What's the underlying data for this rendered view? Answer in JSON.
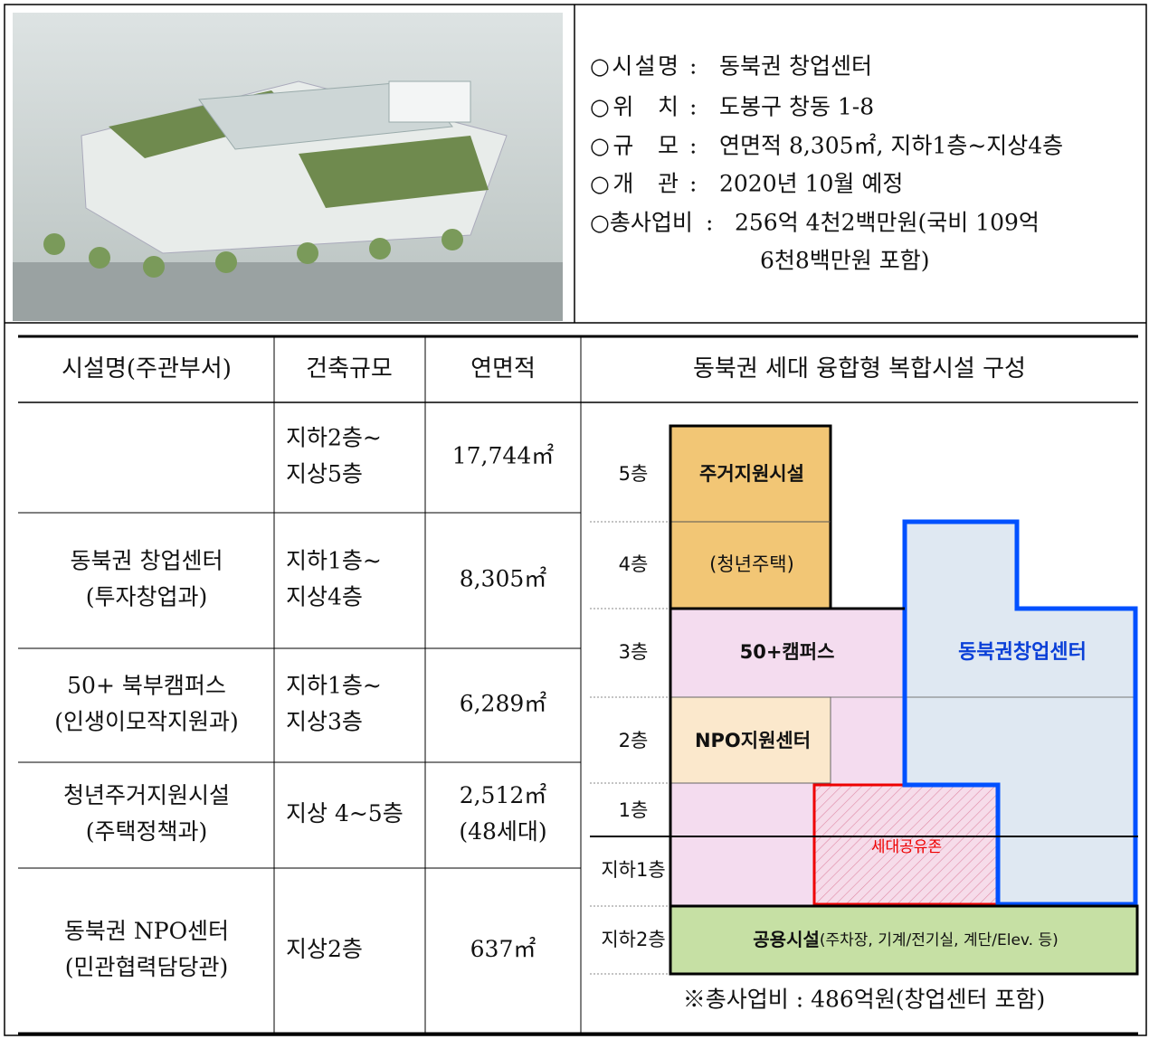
{
  "info": {
    "separator": ":",
    "items": [
      {
        "label": "○시설명",
        "value": [
          "동북권 창업센터"
        ]
      },
      {
        "label": "○위  치",
        "value": [
          "도봉구 창동 1-8"
        ]
      },
      {
        "label": "○규  모",
        "value": [
          "연면적 8,305㎡, 지하1층~지상4층"
        ]
      },
      {
        "label": "○개  관",
        "value": [
          "2020년 10월 예정"
        ]
      },
      {
        "label": "○총사업비",
        "value": [
          "256억 4천2백만원(국비 109억",
          "6천8백만원 포함)"
        ]
      }
    ]
  },
  "table": {
    "headers": [
      "시설명(주관부서)",
      "건축규모",
      "연면적",
      "동북권 세대 융합형 복합시설 구성"
    ],
    "rows": [
      {
        "scale": [
          "지하2층~",
          "지상5층"
        ],
        "area": [
          "17,744㎡"
        ]
      },
      {
        "name": [
          "동북권 창업센터",
          "(투자창업과)"
        ],
        "scale": [
          "지하1층~",
          "지상4층"
        ],
        "area": [
          "8,305㎡"
        ]
      },
      {
        "name": [
          "50+ 북부캠퍼스",
          "(인생이모작지원과)"
        ],
        "scale": [
          "지하1층~",
          "지상3층"
        ],
        "area": [
          "6,289㎡"
        ]
      },
      {
        "name": [
          "청년주거지원시설",
          "(주택정책과)"
        ],
        "scale": [
          "지상 4~5층"
        ],
        "area": [
          "2,512㎡",
          "(48세대)"
        ]
      },
      {
        "name": [
          "동북권 NPO센터",
          "(민관협력담당관)"
        ],
        "scale": [
          "지상2층"
        ],
        "area": [
          "637㎡"
        ]
      }
    ]
  },
  "diagram": {
    "floors": [
      "5층",
      "4층",
      "3층",
      "2층",
      "1층",
      "지하1층",
      "지하2층"
    ],
    "housing": "주거지원시설",
    "housing_note": "(청년주택)",
    "campus": "50+캠퍼스",
    "startup": "동북권창업센터",
    "npo": "NPO지원센터",
    "shared": "세대공유존",
    "common": "공용시설",
    "common_note": "(주차장, 기계/전기실, 계단/Elev. 등)"
  },
  "footer": "※총사업비 : 486억원(창업센터 포함)"
}
